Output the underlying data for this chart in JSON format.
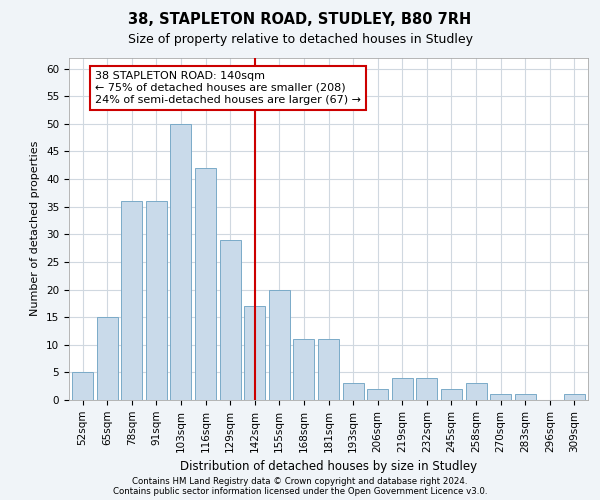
{
  "title1": "38, STAPLETON ROAD, STUDLEY, B80 7RH",
  "title2": "Size of property relative to detached houses in Studley",
  "xlabel": "Distribution of detached houses by size in Studley",
  "ylabel": "Number of detached properties",
  "footnote1": "Contains HM Land Registry data © Crown copyright and database right 2024.",
  "footnote2": "Contains public sector information licensed under the Open Government Licence v3.0.",
  "categories": [
    "52sqm",
    "65sqm",
    "78sqm",
    "91sqm",
    "103sqm",
    "116sqm",
    "129sqm",
    "142sqm",
    "155sqm",
    "168sqm",
    "181sqm",
    "193sqm",
    "206sqm",
    "219sqm",
    "232sqm",
    "245sqm",
    "258sqm",
    "270sqm",
    "283sqm",
    "296sqm",
    "309sqm"
  ],
  "values": [
    5,
    15,
    36,
    36,
    50,
    42,
    29,
    17,
    20,
    11,
    11,
    3,
    2,
    4,
    4,
    2,
    3,
    1,
    1,
    0,
    1
  ],
  "bar_color": "#c9daea",
  "bar_edge_color": "#7aaac8",
  "vline_x": 7,
  "vline_color": "#cc0000",
  "annotation_text": "38 STAPLETON ROAD: 140sqm\n← 75% of detached houses are smaller (208)\n24% of semi-detached houses are larger (67) →",
  "annotation_box_facecolor": "#ffffff",
  "annotation_box_edgecolor": "#cc0000",
  "ylim": [
    0,
    62
  ],
  "yticks": [
    0,
    5,
    10,
    15,
    20,
    25,
    30,
    35,
    40,
    45,
    50,
    55,
    60
  ],
  "fig_facecolor": "#f0f4f8",
  "plot_facecolor": "#ffffff",
  "grid_color": "#d0d8e0",
  "title1_fontsize": 10.5,
  "title2_fontsize": 9,
  "ylabel_fontsize": 8,
  "xlabel_fontsize": 8.5,
  "tick_fontsize": 7.5,
  "annot_fontsize": 8
}
